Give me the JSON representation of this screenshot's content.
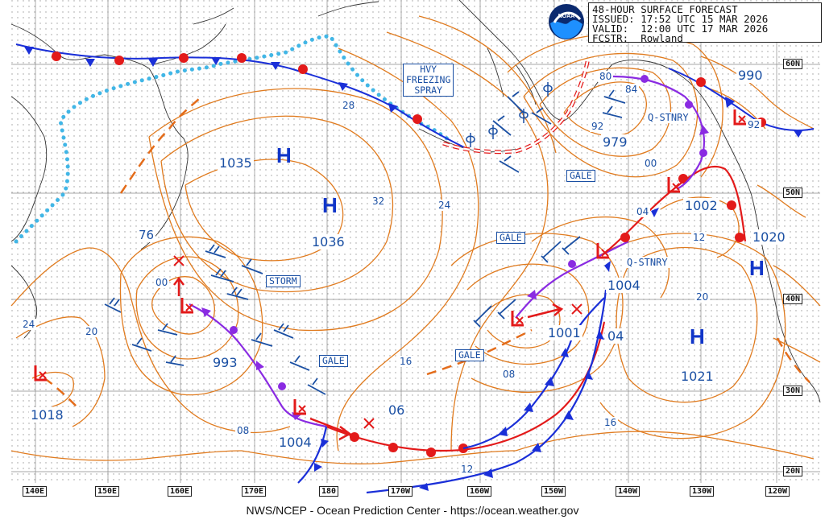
{
  "header": {
    "title": "48-HOUR SURFACE FORECAST",
    "issued": "ISSUED: 17:52 UTC 15 MAR 2026",
    "valid": "VALID:  12:00 UTC 17 MAR 2026",
    "forecaster": "FCSTR:  Rowland"
  },
  "logo_text": "NOAA",
  "footer": "NWS/NCEP - Ocean Prediction Center - https://ocean.weather.gov",
  "longitudes": [
    "140E",
    "150E",
    "160E",
    "170E",
    "180",
    "170W",
    "160W",
    "150W",
    "140W",
    "130W",
    "120W"
  ],
  "latitudes": [
    "60N",
    "50N",
    "40N",
    "30N",
    "20N"
  ],
  "highs": [
    {
      "letter": "H",
      "value": "1035"
    },
    {
      "letter": "H",
      "value": "1036"
    },
    {
      "letter": "H",
      "value": "1021"
    },
    {
      "letter": "H",
      "value": "1020"
    }
  ],
  "lows": [
    {
      "value": "1018"
    },
    {
      "value": "993"
    },
    {
      "value": "1004"
    },
    {
      "value": "1001"
    },
    {
      "value": "1004"
    },
    {
      "value": "1002"
    },
    {
      "value": "979"
    },
    {
      "value": "990"
    }
  ],
  "isobar_labels": [
    "76",
    "00",
    "24",
    "20",
    "08",
    "28",
    "32",
    "24",
    "16",
    "06",
    "08",
    "12",
    "16",
    "04",
    "12",
    "20",
    "04",
    "00",
    "92",
    "80",
    "84",
    "92"
  ],
  "warning_boxes": [
    "HVY\nFREEZING\nSPRAY",
    "STORM",
    "GALE",
    "GALE",
    "GALE",
    "GALE"
  ],
  "front_labels": [
    "Q-STNRY",
    "Q-STNRY"
  ],
  "colors": {
    "isobar": "#e07b1f",
    "cold_front": "#1a2fd8",
    "warm_front": "#e31a1a",
    "occluded": "#8a2be2",
    "ice_edge": "#41b6e6",
    "grid": "#8a8a8a",
    "label": "#1a4fa3",
    "pressure_center": "#1035c8"
  }
}
